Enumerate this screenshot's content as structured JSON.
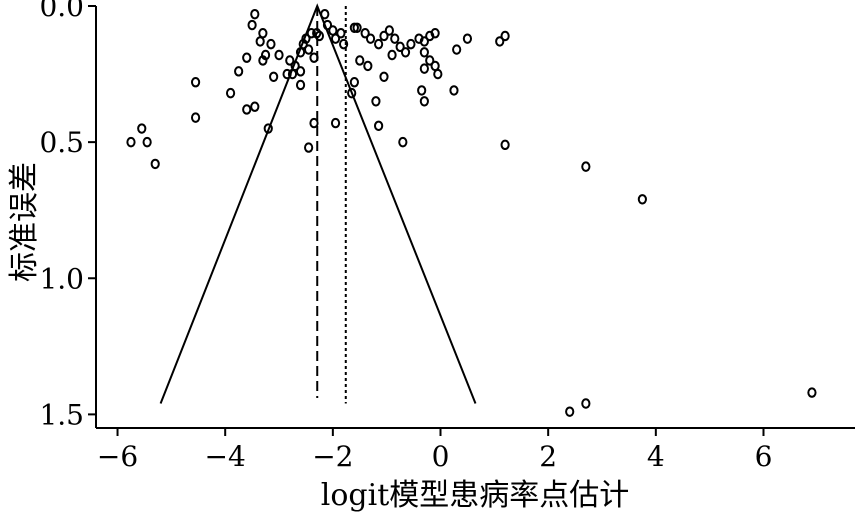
{
  "chart_data": {
    "type": "scatter",
    "title": "",
    "xlabel": "logit模型患病率点估计",
    "ylabel": "标准误差",
    "xlim": [
      -6.4,
      7.7
    ],
    "ylim": [
      0.0,
      1.55
    ],
    "y_inverted": true,
    "x_ticks": [
      -6,
      -4,
      -2,
      0,
      2,
      4,
      6
    ],
    "x_tick_labels": [
      "−6",
      "−4",
      "−2",
      "0",
      "2",
      "4",
      "6"
    ],
    "y_ticks": [
      0.0,
      0.5,
      1.0,
      1.5
    ],
    "y_tick_labels": [
      "0.0",
      "0.5",
      "1.0",
      "1.5"
    ],
    "grid": false,
    "legend": "none",
    "funnel": {
      "apex": [
        -2.29,
        0.0
      ],
      "left_base": [
        -5.2,
        1.46
      ],
      "right_base": [
        0.65,
        1.46
      ]
    },
    "pooled_estimate_line": {
      "x": -2.29,
      "y_range": [
        0.0,
        1.44
      ],
      "style": "dashed"
    },
    "reference_line": {
      "x": -1.76,
      "y_range": [
        0.0,
        1.46
      ],
      "style": "dotted"
    },
    "points": [
      [
        -3.45,
        0.03
      ],
      [
        -3.5,
        0.07
      ],
      [
        -3.3,
        0.1
      ],
      [
        -3.35,
        0.13
      ],
      [
        -3.15,
        0.14
      ],
      [
        -3.0,
        0.18
      ],
      [
        -3.3,
        0.2
      ],
      [
        -3.25,
        0.18
      ],
      [
        -2.8,
        0.2
      ],
      [
        -2.7,
        0.22
      ],
      [
        -2.75,
        0.25
      ],
      [
        -2.6,
        0.24
      ],
      [
        -3.1,
        0.26
      ],
      [
        -2.5,
        0.12
      ],
      [
        -2.55,
        0.14
      ],
      [
        -2.45,
        0.16
      ],
      [
        -2.6,
        0.17
      ],
      [
        -2.4,
        0.1
      ],
      [
        -2.3,
        0.1
      ],
      [
        -2.25,
        0.11
      ],
      [
        -2.1,
        0.07
      ],
      [
        -2.15,
        0.03
      ],
      [
        -2.0,
        0.09
      ],
      [
        -1.95,
        0.12
      ],
      [
        -1.85,
        0.1
      ],
      [
        -1.8,
        0.14
      ],
      [
        -2.35,
        0.19
      ],
      [
        -2.6,
        0.29
      ],
      [
        -2.85,
        0.25
      ],
      [
        -3.6,
        0.19
      ],
      [
        -3.75,
        0.24
      ],
      [
        -3.9,
        0.32
      ],
      [
        -3.6,
        0.38
      ],
      [
        -3.45,
        0.37
      ],
      [
        -4.55,
        0.28
      ],
      [
        -4.55,
        0.41
      ],
      [
        -3.2,
        0.45
      ],
      [
        -2.35,
        0.43
      ],
      [
        -2.45,
        0.52
      ],
      [
        -1.95,
        0.43
      ],
      [
        -1.65,
        0.32
      ],
      [
        -1.6,
        0.28
      ],
      [
        -1.6,
        0.08
      ],
      [
        -1.55,
        0.08
      ],
      [
        -1.4,
        0.1
      ],
      [
        -1.3,
        0.12
      ],
      [
        -1.15,
        0.14
      ],
      [
        -1.05,
        0.11
      ],
      [
        -0.95,
        0.09
      ],
      [
        -0.85,
        0.12
      ],
      [
        -0.75,
        0.15
      ],
      [
        -0.65,
        0.17
      ],
      [
        -0.55,
        0.14
      ],
      [
        -0.4,
        0.12
      ],
      [
        -0.3,
        0.13
      ],
      [
        -0.2,
        0.11
      ],
      [
        -0.1,
        0.1
      ],
      [
        -0.3,
        0.17
      ],
      [
        -0.2,
        0.2
      ],
      [
        -0.1,
        0.22
      ],
      [
        -0.05,
        0.25
      ],
      [
        -0.3,
        0.23
      ],
      [
        -0.35,
        0.31
      ],
      [
        -0.3,
        0.35
      ],
      [
        -1.05,
        0.26
      ],
      [
        -1.2,
        0.35
      ],
      [
        -1.15,
        0.44
      ],
      [
        -0.7,
        0.5
      ],
      [
        -1.5,
        0.2
      ],
      [
        -1.35,
        0.22
      ],
      [
        -0.9,
        0.18
      ],
      [
        0.3,
        0.16
      ],
      [
        0.25,
        0.31
      ],
      [
        0.5,
        0.12
      ],
      [
        1.1,
        0.13
      ],
      [
        1.2,
        0.11
      ],
      [
        1.2,
        0.51
      ],
      [
        -5.75,
        0.5
      ],
      [
        -5.45,
        0.5
      ],
      [
        -5.55,
        0.45
      ],
      [
        -5.3,
        0.58
      ],
      [
        2.7,
        0.59
      ],
      [
        3.75,
        0.71
      ],
      [
        2.4,
        1.49
      ],
      [
        2.7,
        1.46
      ],
      [
        6.9,
        1.42
      ]
    ]
  }
}
